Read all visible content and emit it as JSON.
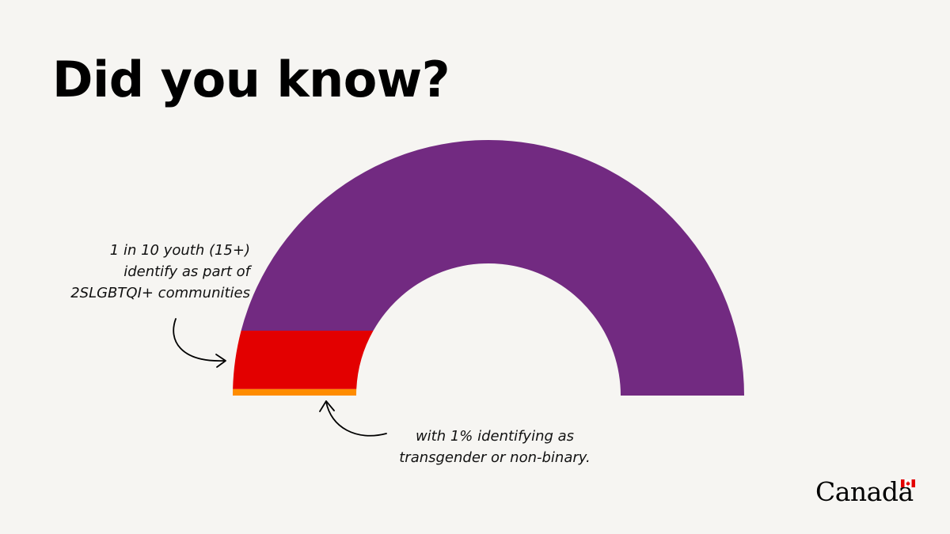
{
  "title": "Did you know?",
  "annotations": {
    "youth_lines": [
      "1 in 10 youth (15+)",
      "identify as part of",
      "2SLGBTQI+ communities"
    ],
    "trans_lines": [
      "with 1% identifying as",
      "transgender or non-binary."
    ]
  },
  "logo": {
    "wordmark": "Canada",
    "flag": "canadian-flag-icon"
  },
  "colors": {
    "background": "#f6f5f2",
    "purple": "#722a81",
    "red": "#e30000",
    "orange": "#ff8c00",
    "text": "#000000"
  },
  "chart_data": {
    "type": "semicircle-gauge",
    "title": "",
    "total_percent": 100,
    "segments": [
      {
        "value": 90,
        "color": "#722a81"
      },
      {
        "value": 9,
        "color": "#e30000"
      },
      {
        "value": 1,
        "color": "#ff8c00"
      }
    ]
  }
}
